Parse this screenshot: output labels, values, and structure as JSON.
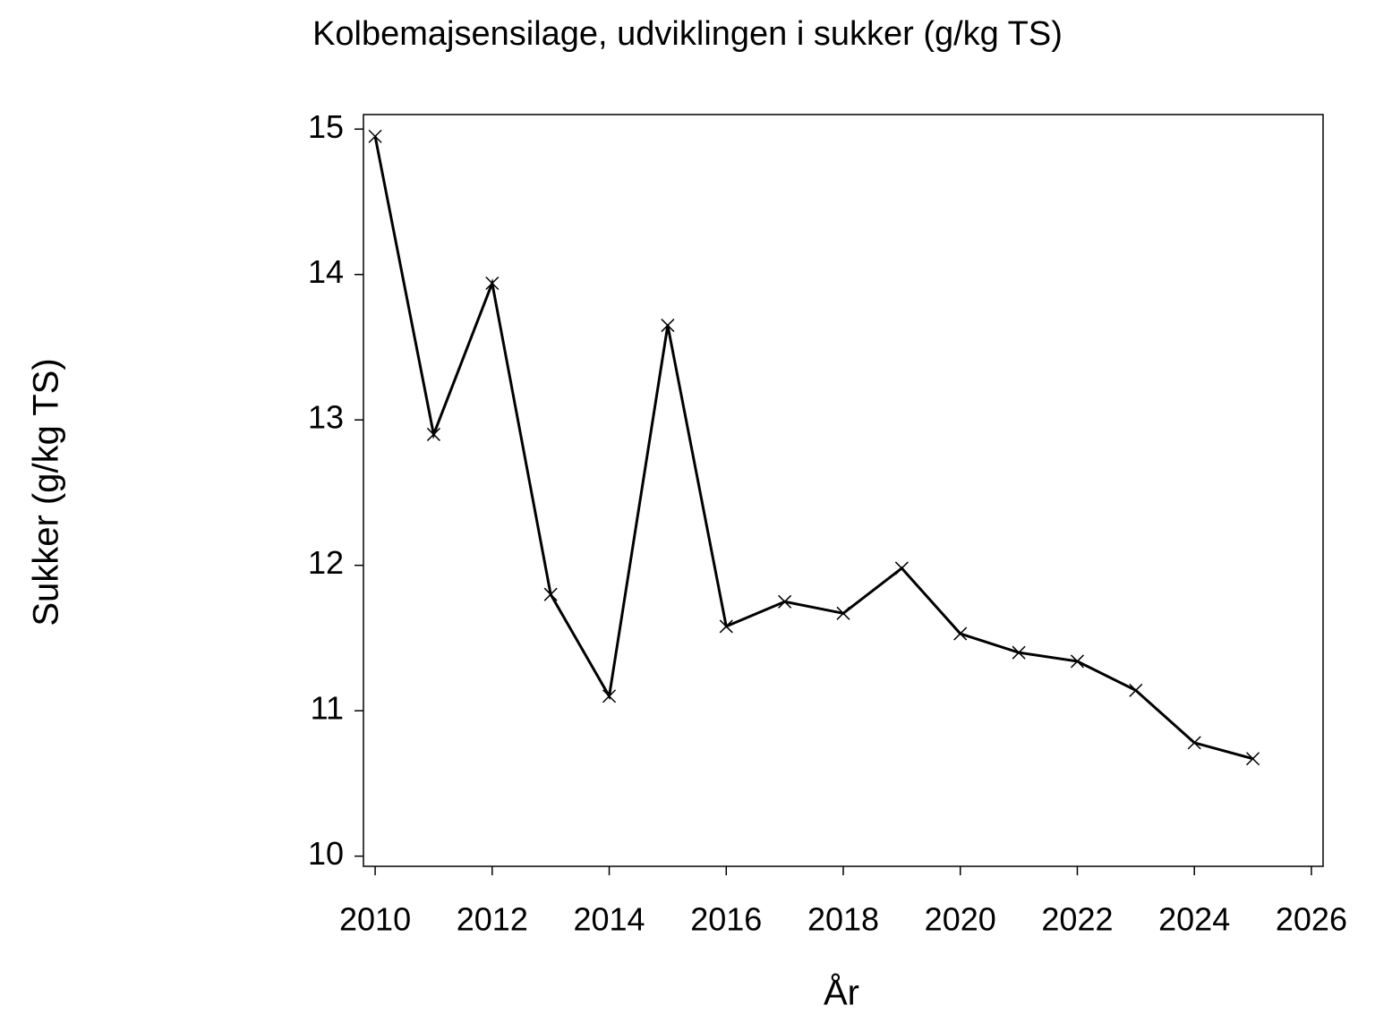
{
  "chart_data": {
    "type": "line",
    "title": "Kolbemajsensilage,  udviklingen  i  sukker  (g/kg  TS)",
    "x_label": "År",
    "y_label": "Sukker  (g/kg  TS)",
    "x": [
      2010,
      2011,
      2012,
      2013,
      2014,
      2015,
      2016,
      2017,
      2018,
      2019,
      2020,
      2021,
      2022,
      2023,
      2024,
      2025
    ],
    "series": [
      {
        "name": "Sukker",
        "color": "#000000",
        "values": [
          14.95,
          12.9,
          13.94,
          11.8,
          11.1,
          13.65,
          11.58,
          11.75,
          11.67,
          11.98,
          11.53,
          11.4,
          11.34,
          11.14,
          10.78,
          10.67
        ]
      }
    ],
    "xlim": [
      2009.8,
      2026.2
    ],
    "xticks": [
      2010,
      2012,
      2014,
      2016,
      2018,
      2020,
      2022,
      2024,
      2026
    ],
    "ylim": [
      9.93,
      15.1
    ],
    "yticks": [
      10,
      11,
      12,
      13,
      14,
      15
    ],
    "marker": "x"
  }
}
